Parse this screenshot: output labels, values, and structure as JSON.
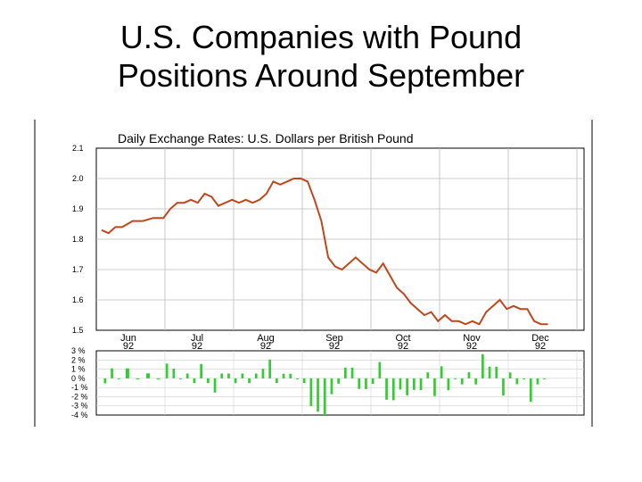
{
  "slide": {
    "title_line1": "U.S. Companies with Pound",
    "title_line2": "Positions Around September"
  },
  "chart_data": {
    "type": "line",
    "title": "Daily Exchange Rates: U.S. Dollars per British Pound",
    "ylim": [
      1.5,
      2.1
    ],
    "y_ticks": [
      "2.1",
      "2.0",
      "1.9",
      "1.8",
      "1.7",
      "1.6",
      "1.5"
    ],
    "x_ticks": [
      {
        "month": "Jun",
        "year": "92"
      },
      {
        "month": "Jul",
        "year": "92"
      },
      {
        "month": "Aug",
        "year": "92"
      },
      {
        "month": "Sep",
        "year": "92"
      },
      {
        "month": "Oct",
        "year": "92"
      },
      {
        "month": "Nov",
        "year": "92"
      },
      {
        "month": "Dec",
        "year": "92"
      }
    ],
    "grid": true,
    "line_color": "#c0471c",
    "series": [
      {
        "values": [
          [
            0,
            1.83
          ],
          [
            0.1,
            1.82
          ],
          [
            0.2,
            1.84
          ],
          [
            0.3,
            1.84
          ],
          [
            0.45,
            1.86
          ],
          [
            0.6,
            1.86
          ],
          [
            0.75,
            1.87
          ],
          [
            0.9,
            1.87
          ],
          [
            1.0,
            1.9
          ],
          [
            1.1,
            1.92
          ],
          [
            1.2,
            1.92
          ],
          [
            1.3,
            1.93
          ],
          [
            1.4,
            1.92
          ],
          [
            1.5,
            1.95
          ],
          [
            1.6,
            1.94
          ],
          [
            1.7,
            1.91
          ],
          [
            1.8,
            1.92
          ],
          [
            1.9,
            1.93
          ],
          [
            2.0,
            1.92
          ],
          [
            2.1,
            1.93
          ],
          [
            2.2,
            1.92
          ],
          [
            2.3,
            1.93
          ],
          [
            2.4,
            1.95
          ],
          [
            2.5,
            1.99
          ],
          [
            2.6,
            1.98
          ],
          [
            2.7,
            1.99
          ],
          [
            2.8,
            2.0
          ],
          [
            2.9,
            2.0
          ],
          [
            3.0,
            1.99
          ],
          [
            3.1,
            1.93
          ],
          [
            3.2,
            1.86
          ],
          [
            3.3,
            1.74
          ],
          [
            3.4,
            1.71
          ],
          [
            3.5,
            1.7
          ],
          [
            3.6,
            1.72
          ],
          [
            3.7,
            1.74
          ],
          [
            3.8,
            1.72
          ],
          [
            3.9,
            1.7
          ],
          [
            4.0,
            1.69
          ],
          [
            4.1,
            1.72
          ],
          [
            4.2,
            1.68
          ],
          [
            4.3,
            1.64
          ],
          [
            4.4,
            1.62
          ],
          [
            4.5,
            1.59
          ],
          [
            4.6,
            1.57
          ],
          [
            4.7,
            1.55
          ],
          [
            4.8,
            1.56
          ],
          [
            4.9,
            1.53
          ],
          [
            5.0,
            1.55
          ],
          [
            5.1,
            1.53
          ],
          [
            5.2,
            1.53
          ],
          [
            5.3,
            1.52
          ],
          [
            5.4,
            1.53
          ],
          [
            5.5,
            1.52
          ],
          [
            5.6,
            1.56
          ],
          [
            5.7,
            1.58
          ],
          [
            5.8,
            1.6
          ],
          [
            5.9,
            1.57
          ],
          [
            6.0,
            1.58
          ],
          [
            6.1,
            1.57
          ],
          [
            6.2,
            1.57
          ],
          [
            6.3,
            1.53
          ],
          [
            6.4,
            1.52
          ],
          [
            6.5,
            1.52
          ]
        ]
      }
    ],
    "change_panel": {
      "type": "bar",
      "bar_color": "#33cc33",
      "y_ticks": [
        "3 %",
        "2 %",
        "1 %",
        "0 %",
        "-1 %",
        "-2 %",
        "-3 %",
        "-4 %"
      ],
      "ylim": [
        -4,
        3
      ]
    }
  }
}
